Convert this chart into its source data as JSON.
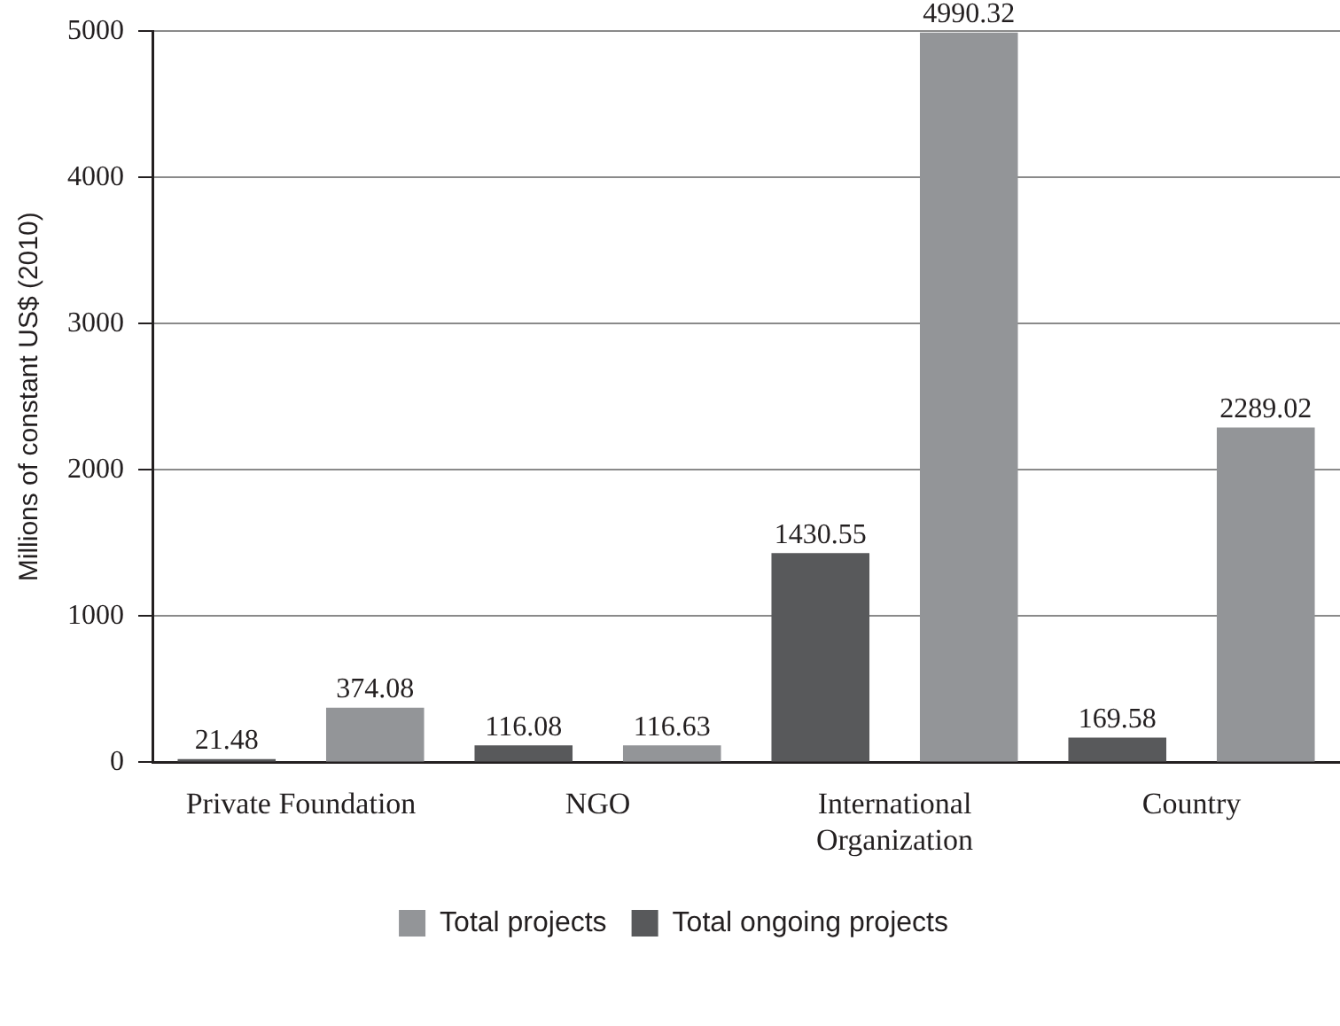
{
  "chart_data": {
    "type": "bar",
    "ylabel": "Millions of constant US$ (2010)",
    "categories": [
      "Private Foundation",
      "NGO",
      "International Organization",
      "Country"
    ],
    "series": [
      {
        "name": "Total ongoing projects",
        "color": "#58595b",
        "values": [
          21.48,
          116.08,
          1430.55,
          169.58
        ]
      },
      {
        "name": "Total projects",
        "color": "#939598",
        "values": [
          374.08,
          116.63,
          4990.32,
          2289.02
        ]
      }
    ],
    "ylim": [
      0,
      5000
    ],
    "yticks": [
      0,
      1000,
      2000,
      3000,
      4000,
      5000
    ],
    "grid": "y",
    "legend": "bottom",
    "data_labels": true
  }
}
